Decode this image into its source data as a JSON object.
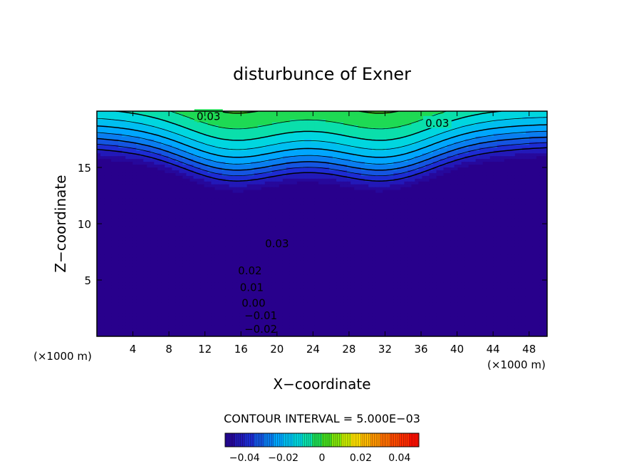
{
  "chart_data": {
    "type": "heatmap",
    "title": "disturbunce of Exner",
    "xlabel": "X−coordinate",
    "ylabel": "Z−coordinate",
    "x_unit_label": "(×1000 m)",
    "y_unit_label": "(×1000 m)",
    "xlim": [
      0,
      50
    ],
    "ylim": [
      0,
      20
    ],
    "x_ticks": [
      4,
      8,
      12,
      16,
      20,
      24,
      28,
      32,
      36,
      40,
      44,
      48
    ],
    "y_ticks": [
      5,
      10,
      15
    ],
    "contour_interval_text": "CONTOUR INTERVAL = 5.000E−03",
    "contour_labels": [
      {
        "text": "0.03",
        "x": 12.4,
        "z": 19.6
      },
      {
        "text": "0.03",
        "x": 37.8,
        "z": 19.0
      },
      {
        "text": "0.03",
        "x": 20.0,
        "z": 8.3
      },
      {
        "text": "0.02",
        "x": 17.0,
        "z": 5.9
      },
      {
        "text": "0.01",
        "x": 17.2,
        "z": 4.4
      },
      {
        "text": "0.00",
        "x": 17.4,
        "z": 3.0
      },
      {
        "text": "−0.01",
        "x": 18.2,
        "z": 1.9
      },
      {
        "text": "−0.02",
        "x": 18.2,
        "z": 0.7
      }
    ],
    "colorbar": {
      "range": [
        -0.05,
        0.05
      ],
      "tick_labels": [
        "−0.04",
        "−0.02",
        "0",
        "0.02",
        "0.04"
      ],
      "tick_values": [
        -0.04,
        -0.02,
        0,
        0.02,
        0.04
      ]
    },
    "colors": {
      "negative_end": "#1a2acc",
      "zero": "#44dd44",
      "positive_end": "#ff1a00"
    }
  }
}
